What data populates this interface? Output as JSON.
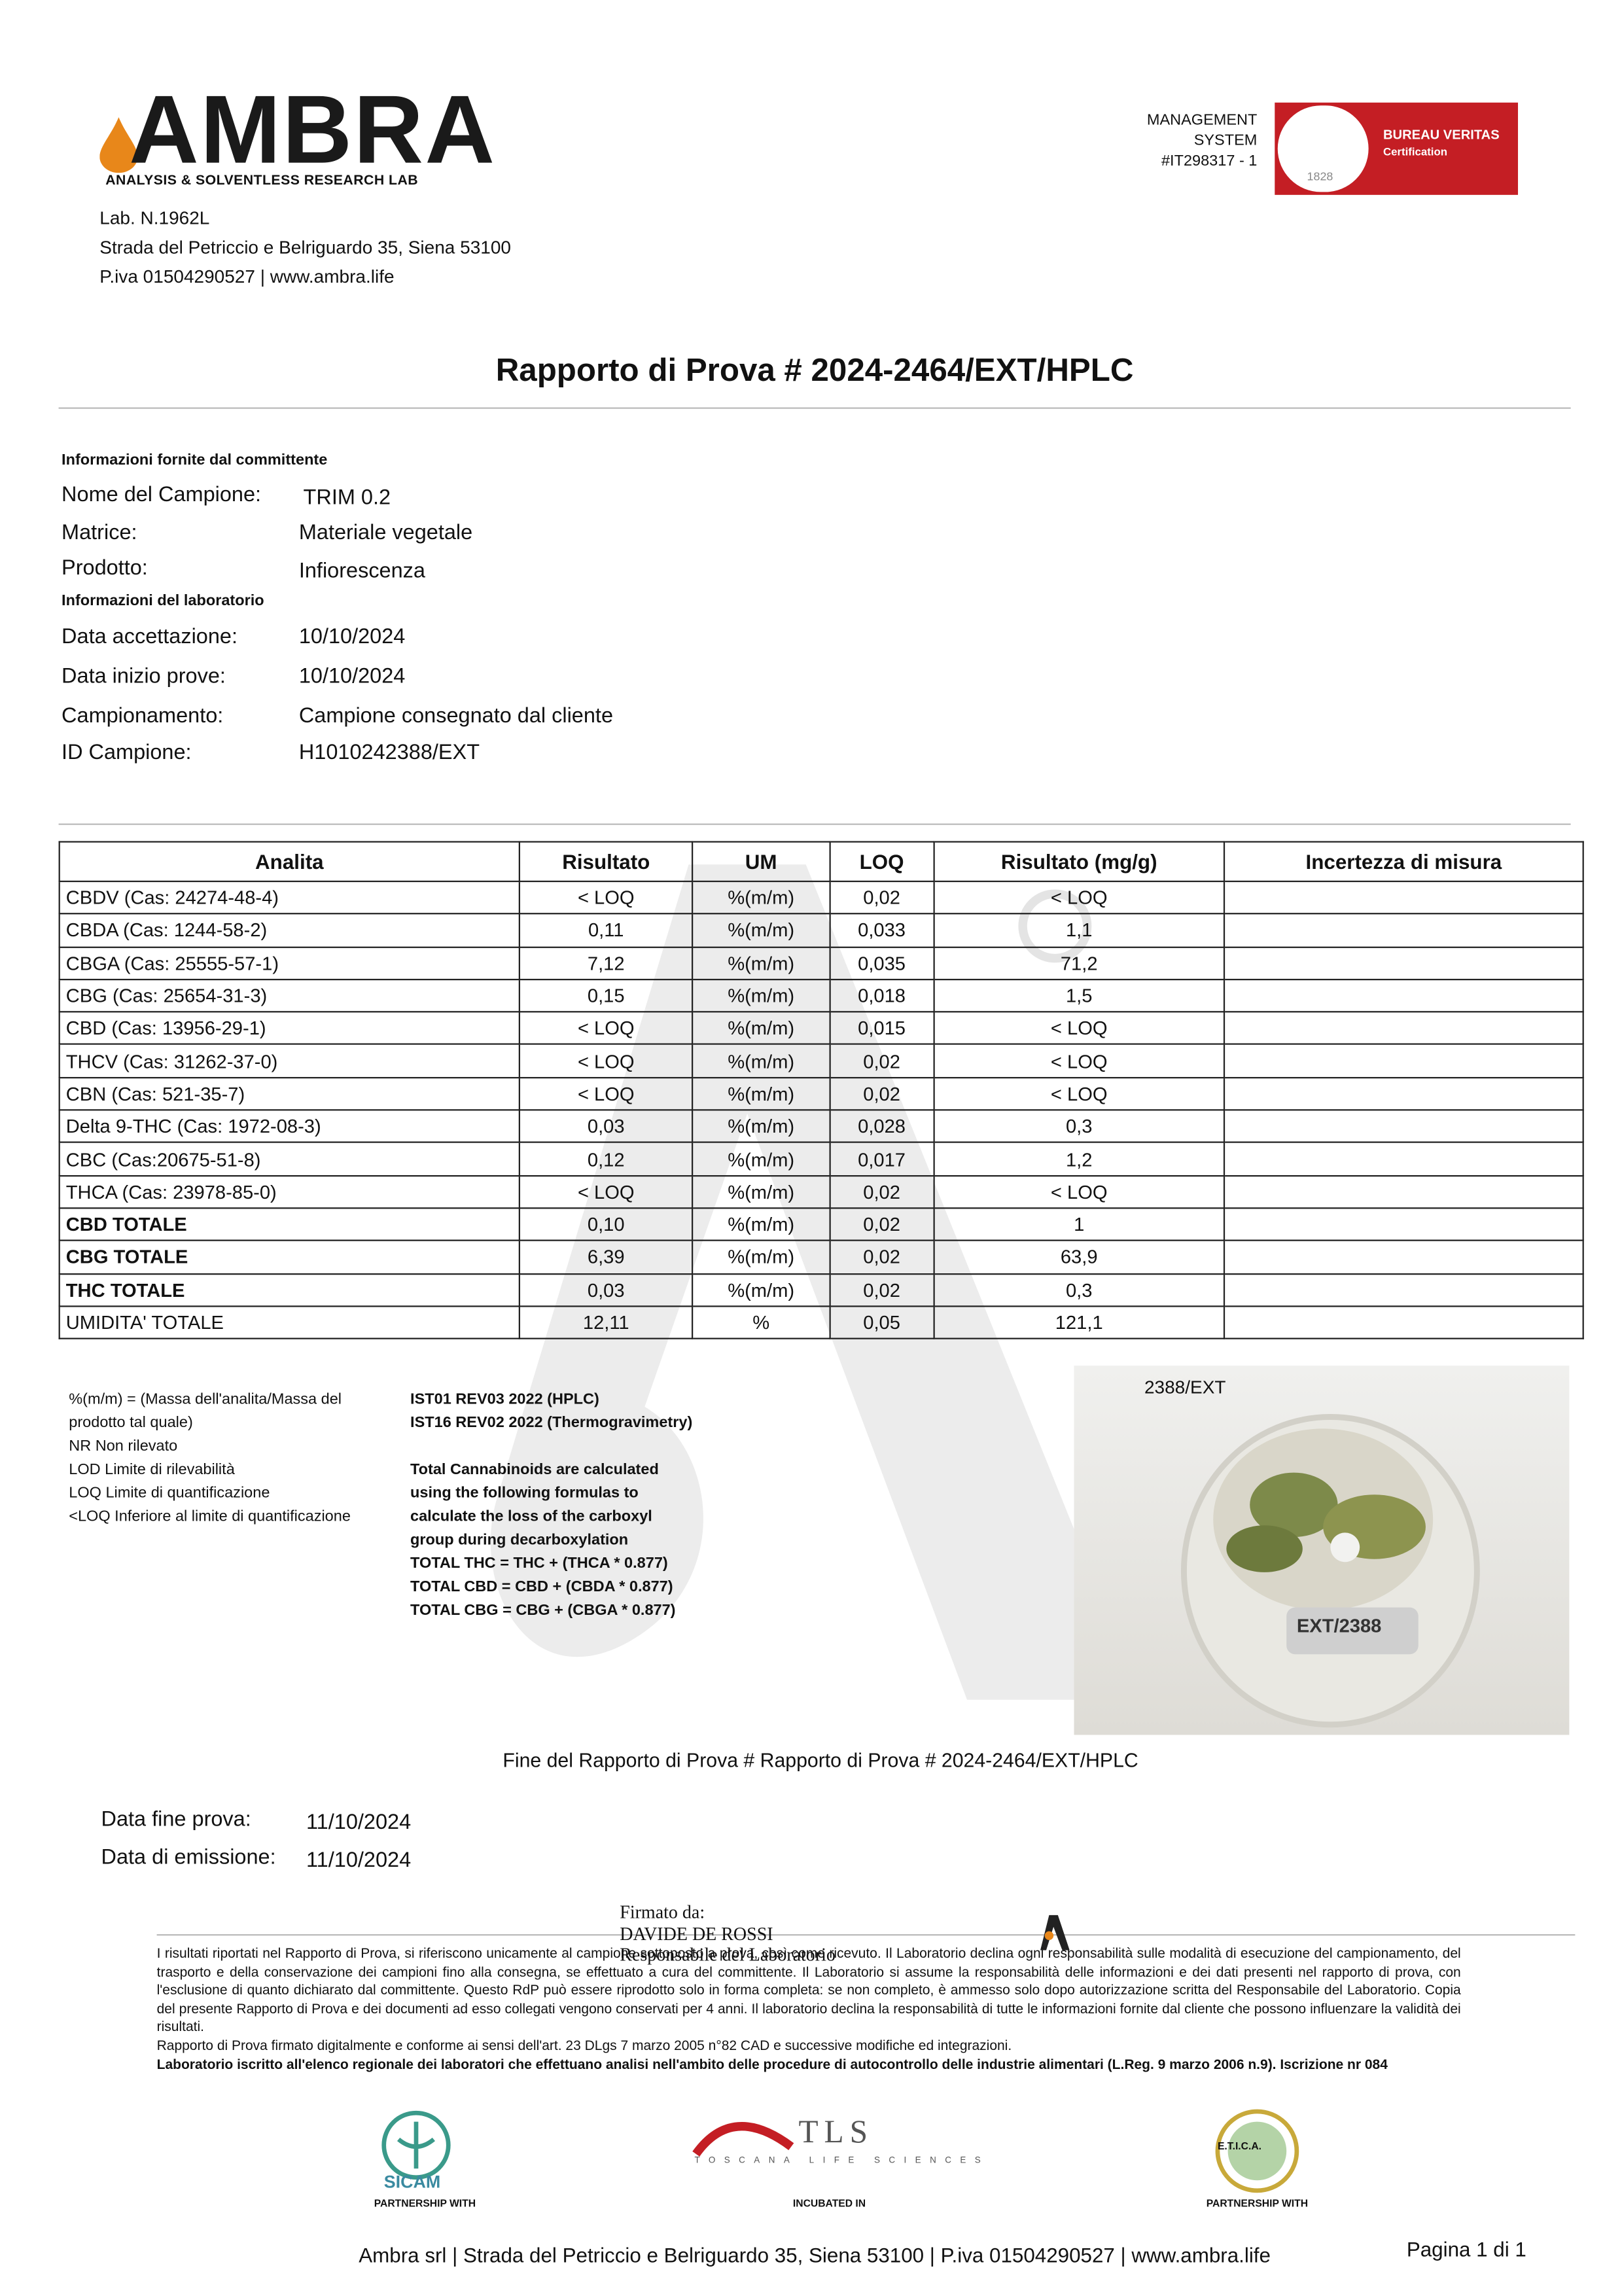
{
  "header": {
    "logo": "AMBRA",
    "logo_subtitle": "ANALYSIS & SOLVENTLESS RESEARCH LAB",
    "certification": {
      "line1": "MANAGEMENT",
      "line2": "SYSTEM",
      "line3": "#IT298317 - 1",
      "brand": "BUREAU VERITAS",
      "brand_sub": "Certification",
      "year": "1828"
    },
    "lab_lines": [
      "Lab. N.1962L",
      "Strada del Petriccio e Belriguardo 35, Siena 53100",
      "P.iva 01504290527 | www.ambra.life"
    ]
  },
  "title": "Rapporto di Prova # 2024-2464/EXT/HPLC",
  "info": {
    "client_heading": "Informazioni fornite dal committente",
    "client_rows": [
      [
        "Nome del Campione:",
        "TRIM 0.2"
      ],
      [
        "Matrice:",
        "Materiale vegetale"
      ],
      [
        "Prodotto:",
        "Infiorescenza"
      ]
    ],
    "lab_heading": "Informazioni del laboratorio",
    "lab_rows": [
      [
        "Data accettazione:",
        "10/10/2024"
      ],
      [
        "Data inizio prove:",
        "10/10/2024"
      ],
      [
        "Campionamento:",
        "Campione consegnato dal cliente"
      ],
      [
        "ID Campione:",
        "H1010242388/EXT"
      ]
    ]
  },
  "table": {
    "headers": [
      "Analita",
      "Risultato",
      "UM",
      "LOQ",
      "Risultato (mg/g)",
      "Incertezza di misura"
    ],
    "rows": [
      [
        "CBDV (Cas: 24274-48-4)",
        "< LOQ",
        "%(m/m)",
        "0,02",
        "< LOQ",
        null
      ],
      [
        "CBDA (Cas: 1244-58-2)",
        "0,11",
        "%(m/m)",
        "0,033",
        "1,1",
        null
      ],
      [
        "CBGA (Cas: 25555-57-1)",
        "7,12",
        "%(m/m)",
        "0,035",
        "71,2",
        null
      ],
      [
        "CBG (Cas: 25654-31-3)",
        "0,15",
        "%(m/m)",
        "0,018",
        "1,5",
        null
      ],
      [
        "CBD (Cas: 13956-29-1)",
        "< LOQ",
        "%(m/m)",
        "0,015",
        "< LOQ",
        null
      ],
      [
        "THCV (Cas: 31262-37-0)",
        "< LOQ",
        "%(m/m)",
        "0,02",
        "< LOQ",
        null
      ],
      [
        "CBN (Cas: 521-35-7)",
        "< LOQ",
        "%(m/m)",
        "0,02",
        "< LOQ",
        null
      ],
      [
        "Delta 9-THC (Cas: 1972-08-3)",
        "0,03",
        "%(m/m)",
        "0,028",
        "0,3",
        null
      ],
      [
        "CBC (Cas:20675-51-8)",
        "0,12",
        "%(m/m)",
        "0,017",
        "1,2",
        null
      ],
      [
        "THCA (Cas: 23978-85-0)",
        "< LOQ",
        "%(m/m)",
        "0,02",
        "< LOQ",
        null
      ],
      [
        "CBD TOTALE",
        "0,10",
        "%(m/m)",
        "0,02",
        "1",
        null
      ],
      [
        "CBG TOTALE",
        "6,39",
        "%(m/m)",
        "0,02",
        "63,9",
        null
      ],
      [
        "THC TOTALE",
        "0,03",
        "%(m/m)",
        "0,02",
        "0,3",
        null
      ],
      [
        "UMIDITA' TOTALE",
        "12,11",
        "%",
        "0,05",
        "121,1",
        null
      ]
    ]
  },
  "legend_notes": [
    "%(m/m) = (Massa dell'analita/Massa del",
    "prodotto tal quale)",
    "NR Non rilevato",
    "LOD Limite di rilevabilità",
    "LOQ Limite di quantificazione",
    "<LOQ Inferiore al limite di quantificazione"
  ],
  "methods": [
    "IST01 REV03 2022 (HPLC)",
    "IST16 REV02 2022 (Thermogravimetry)"
  ],
  "formula_notes": [
    "Total Cannabinoids are calculated",
    "using the following formulas to",
    "calculate the loss of the carboxyl",
    "group during decarboxylation",
    "TOTAL THC = THC + (THCA * 0.877)",
    "TOTAL CBD = CBD + (CBDA * 0.877)",
    "TOTAL CBG = CBG + (CBGA * 0.877)"
  ],
  "photo": {
    "caption": "2388/EXT",
    "label": "EXT/2388"
  },
  "end_note": "Fine del Rapporto di Prova # Rapporto di Prova # 2024-2464/EXT/HPLC",
  "dates": [
    [
      "Data fine prova:",
      "11/10/2024"
    ],
    [
      "Data di emissione:",
      "11/10/2024"
    ]
  ],
  "signature": [
    "Firmato da:",
    "DAVIDE DE ROSSI",
    "Responsabile del Laboratorio"
  ],
  "disclaimer": "I risultati riportati nel Rapporto di Prova, si riferiscono unicamente al campione sottoposto a prova, così come ricevuto. Il Laboratorio declina ogni responsabilità sulle modalità di esecuzione del campionamento, del trasporto e della conservazione dei campioni fino alla consegna, se effettuato a cura del committente. Il Laboratorio si assume la responsabilità delle informazioni e dei dati presenti nel rapporto di prova, con l'esclusione di quanto dichiarato dal committente. Questo RdP può essere riprodotto solo in forma completa: se non completo, è ammesso solo dopo autorizzazione scritta del Responsabile del Laboratorio. Copia del presente Rapporto di Prova e dei documenti ad esso collegati vengono conservati per 4 anni. Il laboratorio declina la responsabilità di tutte le informazioni fornite dal cliente che possono influenzare la validità dei risultati.",
  "signature_note": "Rapporto di Prova firmato digitalmente e conforme ai sensi dell'art. 23 DLgs 7 marzo 2005 n°82 CAD e successive modifiche ed integrazioni.",
  "registration": "Laboratorio iscritto all'elenco regionale dei laboratori che effettuano analisi nell'ambito delle procedure di autocontrollo delle industrie alimentari (L.Reg. 9 marzo 2006 n.9). Iscrizione nr 084",
  "partners": [
    {
      "name": "SICAM",
      "caption": "PARTNERSHIP WITH"
    },
    {
      "name": "TLS",
      "sub": "TOSCANA LIFE SCIENCES",
      "caption": "INCUBATED IN"
    },
    {
      "name": "E.T.I.C.A.",
      "caption": "PARTNERSHIP WITH"
    }
  ],
  "footer": {
    "address": "Ambra srl | Strada del Petriccio e Belriguardo 35, Siena 53100 | P.iva 01504290527 | www.ambra.life",
    "page": "Pagina 1 di 1"
  }
}
